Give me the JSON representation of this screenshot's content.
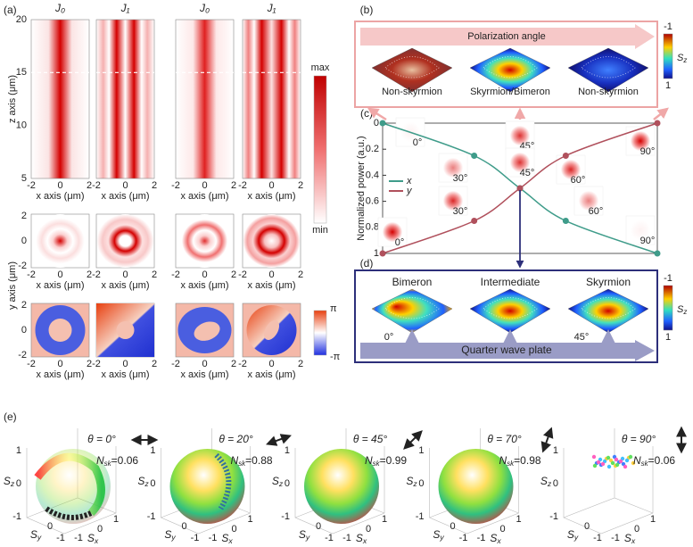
{
  "panel_a": {
    "label": "(a)",
    "columns": [
      "J₀",
      "J₁",
      "J₀",
      "J₁"
    ],
    "z_label": "z axis (μm)",
    "z_ticks": [
      "20",
      "15",
      "10",
      "5"
    ],
    "x_label": "x axis (μm)",
    "x_ticks": [
      "-2",
      "0",
      "2"
    ],
    "y_label": "y axis (μm)",
    "y_ticks": [
      "2",
      "0",
      "-2"
    ],
    "intensity_max": "max",
    "intensity_min": "min",
    "phase_max": "π",
    "phase_min": "-π"
  },
  "panel_b": {
    "label": "(b)",
    "arrow": "Polarization angle",
    "states": [
      "Non-skyrmion",
      "Skyrmion/Bimeron",
      "Non-skyrmion"
    ]
  },
  "colorbar_s": {
    "top": "-1",
    "symbol": "S",
    "sub": "z",
    "bottom": "1"
  },
  "chart_data": {
    "type": "line",
    "label": "(c)",
    "y_label": "Normalized power (a.u.)",
    "x": [
      0,
      30,
      45,
      60,
      90
    ],
    "xlim": [
      0,
      90
    ],
    "ylim": [
      0,
      1
    ],
    "yticks": [
      0,
      0.2,
      0.4,
      0.6,
      0.8,
      1
    ],
    "y_inverted": true,
    "series": [
      {
        "name": "x",
        "color": "#3f9c8a",
        "values": [
          0,
          0.25,
          0.5,
          0.75,
          1
        ]
      },
      {
        "name": "y",
        "color": "#b0505c",
        "values": [
          1,
          0.75,
          0.5,
          0.25,
          0
        ]
      }
    ],
    "insets": [
      {
        "top": "0°",
        "bottom": "0°"
      },
      {
        "top": "30°",
        "bottom": "30°"
      },
      {
        "top": "45°",
        "bottom": "45°"
      },
      {
        "top": "60°",
        "bottom": "60°"
      },
      {
        "top": "90°",
        "bottom": "90°"
      }
    ]
  },
  "panel_d": {
    "label": "(d)",
    "states": [
      "Bimeron",
      "Intermediate",
      "Skyrmion"
    ],
    "angles": [
      "0°",
      "45°"
    ],
    "arrow": "Quarter wave plate"
  },
  "panel_e": {
    "label": "(e)",
    "axis_symbol": "S",
    "axes": [
      "z",
      "y",
      "x"
    ],
    "ticks": [
      "1",
      "0",
      "-1"
    ],
    "nsk_symbol": "N",
    "nsk_sub": "sk",
    "groups": [
      {
        "theta": "θ = 0°",
        "nsk": "=0.06"
      },
      {
        "theta": "θ = 20°",
        "nsk": "=0.88"
      },
      {
        "theta": "θ = 45°",
        "nsk": "=0.99"
      },
      {
        "theta": "θ = 70°",
        "nsk": "=0.98"
      },
      {
        "theta": "θ = 90°",
        "nsk": "=0.06"
      }
    ]
  }
}
